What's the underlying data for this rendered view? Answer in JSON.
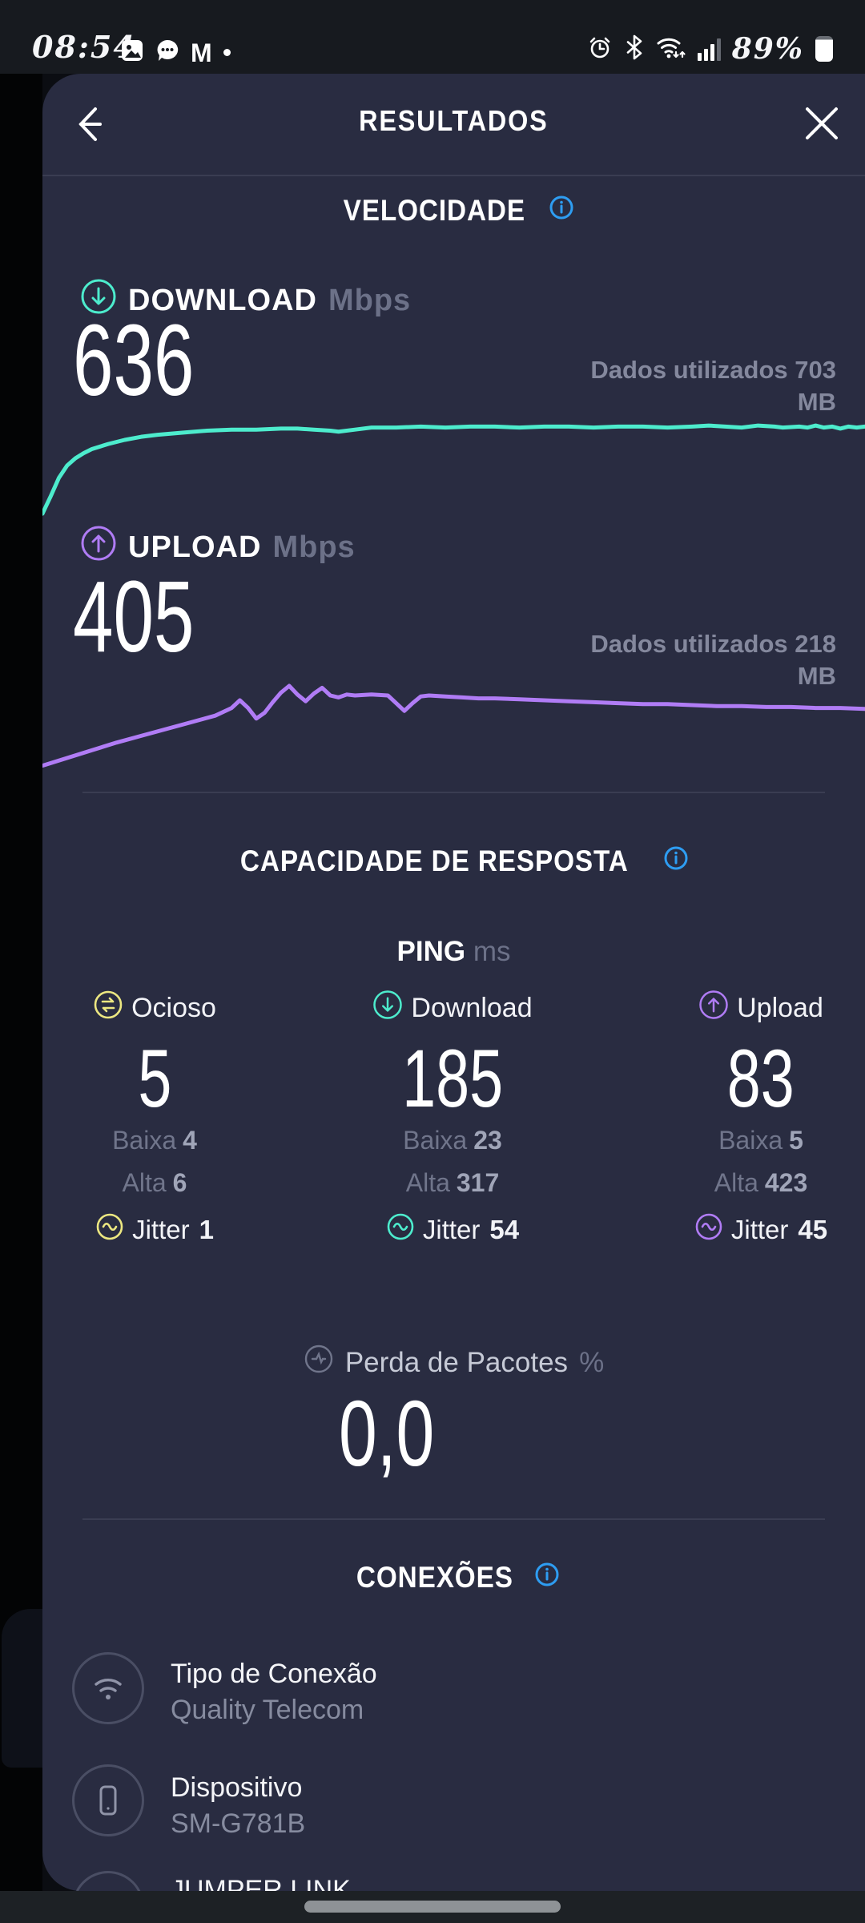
{
  "status_bar": {
    "time": "08:54",
    "battery_percent": "89%",
    "notification_icons": [
      "photo-icon",
      "message-icon",
      "gmail-icon",
      "notification-dot"
    ],
    "system_icons": [
      "alarm-icon",
      "bluetooth-icon",
      "wifi-status-icon",
      "signal-icon",
      "battery-icon"
    ]
  },
  "header": {
    "title": "RESULTADOS"
  },
  "speed": {
    "title": "VELOCIDADE",
    "download": {
      "label": "DOWNLOAD",
      "unit": "Mbps",
      "value": "636",
      "data_used": "Dados utilizados 703 MB"
    },
    "upload": {
      "label": "UPLOAD",
      "unit": "Mbps",
      "value": "405",
      "data_used": "Dados utilizados 218 MB"
    }
  },
  "responsiveness": {
    "title": "CAPACIDADE DE RESPOSTA",
    "ping_label": "PING",
    "ping_unit": "ms",
    "columns": [
      {
        "label": "Ocioso",
        "value": "5",
        "low_label": "Baixa",
        "low": "4",
        "high_label": "Alta",
        "high": "6",
        "jitter_label": "Jitter",
        "jitter": "1"
      },
      {
        "label": "Download",
        "value": "185",
        "low_label": "Baixa",
        "low": "23",
        "high_label": "Alta",
        "high": "317",
        "jitter_label": "Jitter",
        "jitter": "54"
      },
      {
        "label": "Upload",
        "value": "83",
        "low_label": "Baixa",
        "low": "5",
        "high_label": "Alta",
        "high": "423",
        "jitter_label": "Jitter",
        "jitter": "45"
      }
    ],
    "packet_loss": {
      "label": "Perda de Pacotes",
      "unit": "%",
      "value": "0,0"
    }
  },
  "connections": {
    "title": "CONEXÕES",
    "rows": [
      {
        "icon": "wifi-icon",
        "label": "Tipo de Conexão",
        "value": "Quality Telecom"
      },
      {
        "icon": "device-icon",
        "label": "Dispositivo",
        "value": "SM-G781B"
      },
      {
        "icon": "circle-icon",
        "label": "JUMPER LINK",
        "value": ""
      }
    ]
  },
  "chart_data": [
    {
      "type": "line",
      "name": "Download throughput",
      "summary_value_mbps": 636,
      "x_unit": "test progress %",
      "y_unit": "percent of chart height (no axis labels shown)",
      "ylim": [
        0,
        100
      ],
      "grid": false,
      "color": "#4deccd",
      "points": [
        [
          0,
          3
        ],
        [
          1,
          20
        ],
        [
          2,
          38
        ],
        [
          3,
          50
        ],
        [
          4,
          57
        ],
        [
          5,
          62
        ],
        [
          6,
          66
        ],
        [
          8,
          71
        ],
        [
          10,
          75
        ],
        [
          12,
          78
        ],
        [
          14,
          80
        ],
        [
          17,
          82
        ],
        [
          20,
          84
        ],
        [
          23,
          85
        ],
        [
          26,
          85
        ],
        [
          29,
          86
        ],
        [
          31,
          86
        ],
        [
          33,
          85
        ],
        [
          35,
          84
        ],
        [
          36,
          83
        ],
        [
          38,
          85
        ],
        [
          40,
          87
        ],
        [
          43,
          87
        ],
        [
          46,
          88
        ],
        [
          49,
          87
        ],
        [
          52,
          88
        ],
        [
          55,
          88
        ],
        [
          58,
          87
        ],
        [
          61,
          88
        ],
        [
          64,
          88
        ],
        [
          67,
          87
        ],
        [
          70,
          88
        ],
        [
          73,
          88
        ],
        [
          76,
          87
        ],
        [
          79,
          88
        ],
        [
          81,
          89
        ],
        [
          83,
          88
        ],
        [
          85,
          87
        ],
        [
          87,
          89
        ],
        [
          89,
          88
        ],
        [
          90,
          87
        ],
        [
          92,
          88
        ],
        [
          93,
          87
        ],
        [
          94,
          89
        ],
        [
          95,
          87
        ],
        [
          96,
          88
        ],
        [
          97,
          86
        ],
        [
          98,
          88
        ],
        [
          99,
          87
        ],
        [
          100,
          88
        ]
      ]
    },
    {
      "type": "line",
      "name": "Upload throughput",
      "summary_value_mbps": 405,
      "x_unit": "test progress %",
      "y_unit": "percent of chart height (no axis labels shown)",
      "ylim": [
        0,
        100
      ],
      "grid": false,
      "color": "#b07cf5",
      "points": [
        [
          0,
          2
        ],
        [
          3,
          10
        ],
        [
          6,
          18
        ],
        [
          9,
          26
        ],
        [
          12,
          33
        ],
        [
          15,
          40
        ],
        [
          18,
          47
        ],
        [
          21,
          54
        ],
        [
          23,
          62
        ],
        [
          24,
          70
        ],
        [
          25,
          62
        ],
        [
          26,
          51
        ],
        [
          27,
          57
        ],
        [
          28,
          68
        ],
        [
          29,
          78
        ],
        [
          30,
          85
        ],
        [
          31,
          76
        ],
        [
          32,
          69
        ],
        [
          33,
          77
        ],
        [
          34,
          83
        ],
        [
          35,
          75
        ],
        [
          36,
          73
        ],
        [
          37,
          76
        ],
        [
          38,
          75
        ],
        [
          40,
          76
        ],
        [
          42,
          75
        ],
        [
          43,
          67
        ],
        [
          44,
          59
        ],
        [
          45,
          67
        ],
        [
          46,
          74
        ],
        [
          47,
          75
        ],
        [
          49,
          74
        ],
        [
          51,
          73
        ],
        [
          53,
          72
        ],
        [
          55,
          72
        ],
        [
          58,
          71
        ],
        [
          61,
          70
        ],
        [
          64,
          69
        ],
        [
          67,
          68
        ],
        [
          70,
          67
        ],
        [
          73,
          66
        ],
        [
          76,
          66
        ],
        [
          79,
          65
        ],
        [
          82,
          64
        ],
        [
          85,
          64
        ],
        [
          88,
          63
        ],
        [
          91,
          63
        ],
        [
          94,
          62
        ],
        [
          97,
          62
        ],
        [
          100,
          61
        ]
      ]
    }
  ],
  "colors": {
    "accent_download": "#4deccd",
    "accent_upload": "#b07cf5",
    "info_blue": "#2e9df2",
    "idle_yellow": "#ece781",
    "card_bg": "#292c41",
    "status_bar_bg": "#171a1f",
    "text_gray": "#84889d"
  }
}
